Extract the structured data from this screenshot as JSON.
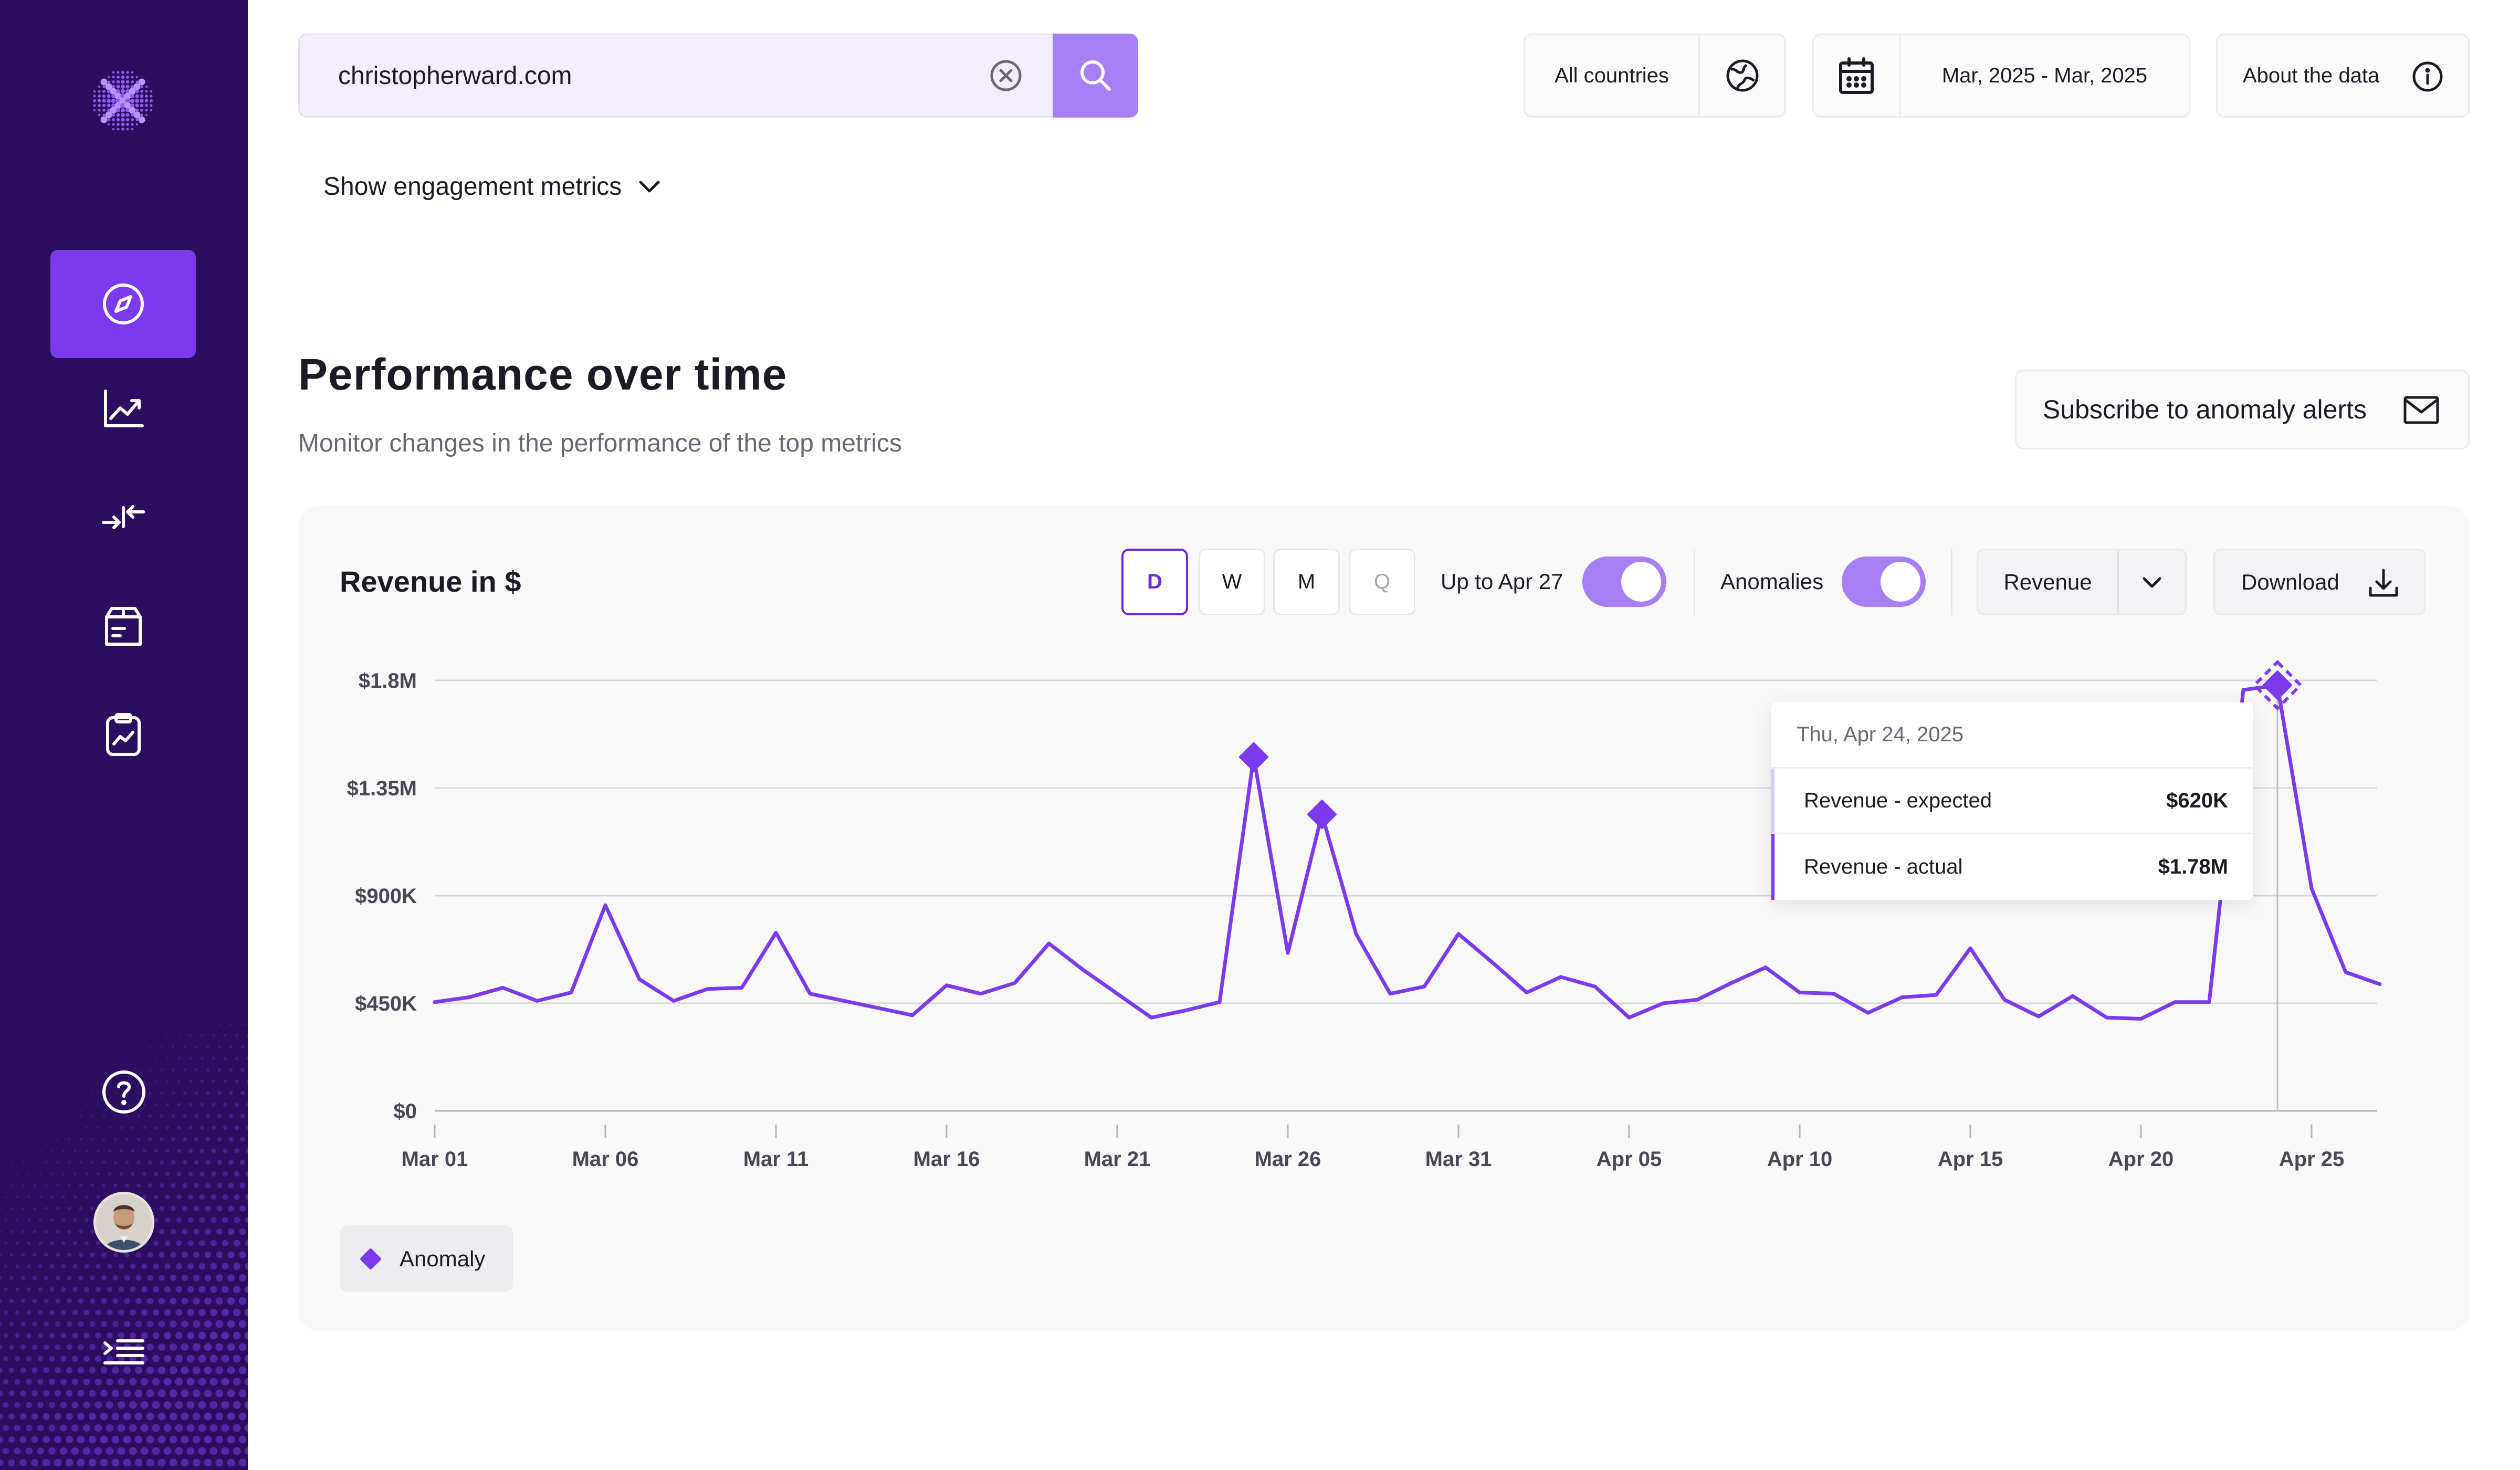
{
  "search": {
    "value": "christopherward.com"
  },
  "filters": {
    "country_label": "All countries",
    "date_range": "Mar, 2025 - Mar, 2025",
    "about_label": "About the data"
  },
  "engagement_toggle": "Show engagement metrics",
  "section": {
    "title": "Performance over time",
    "subtitle": "Monitor changes in the performance of the top metrics",
    "subscribe_label": "Subscribe to anomaly alerts"
  },
  "card": {
    "title": "Revenue in $",
    "granularity": [
      "D",
      "W",
      "M",
      "Q"
    ],
    "granularity_selected": "D",
    "up_to_label": "Up to Apr 27",
    "up_to_enabled": true,
    "anomalies_label": "Anomalies",
    "anomalies_enabled": true,
    "metric_select": "Revenue",
    "download_label": "Download",
    "legend_label": "Anomaly"
  },
  "tooltip": {
    "date": "Thu, Apr 24, 2025",
    "rows": [
      {
        "label": "Revenue - expected",
        "value": "$620K"
      },
      {
        "label": "Revenue - actual",
        "value": "$1.78M"
      }
    ]
  },
  "colors": {
    "sidebar": "#2b0e5f",
    "accent": "#7c3aed",
    "accent_light": "#a77ff5",
    "line": "#7c3aed"
  },
  "chart_data": {
    "type": "line",
    "title": "Revenue in $",
    "series": [
      {
        "name": "Revenue",
        "x": [
          "Mar 01",
          "Mar 02",
          "Mar 03",
          "Mar 04",
          "Mar 05",
          "Mar 06",
          "Mar 07",
          "Mar 08",
          "Mar 09",
          "Mar 10",
          "Mar 11",
          "Mar 12",
          "Mar 13",
          "Mar 14",
          "Mar 15",
          "Mar 16",
          "Mar 17",
          "Mar 18",
          "Mar 19",
          "Mar 20",
          "Mar 21",
          "Mar 22",
          "Mar 23",
          "Mar 24",
          "Mar 25",
          "Mar 26",
          "Mar 27",
          "Mar 28",
          "Mar 29",
          "Mar 30",
          "Mar 31",
          "Apr 01",
          "Apr 02",
          "Apr 03",
          "Apr 04",
          "Apr 05",
          "Apr 06",
          "Apr 07",
          "Apr 08",
          "Apr 09",
          "Apr 10",
          "Apr 11",
          "Apr 12",
          "Apr 13",
          "Apr 14",
          "Apr 15",
          "Apr 16",
          "Apr 17",
          "Apr 18",
          "Apr 19",
          "Apr 20",
          "Apr 21",
          "Apr 22",
          "Apr 23",
          "Apr 24",
          "Apr 25",
          "Apr 26",
          "Apr 27"
        ],
        "values": [
          455000,
          475000,
          515000,
          460000,
          495000,
          860000,
          550000,
          460000,
          510000,
          515000,
          745000,
          490000,
          460000,
          430000,
          400000,
          525000,
          490000,
          535000,
          700000,
          590000,
          490000,
          390000,
          420000,
          455000,
          1480000,
          660000,
          1240000,
          740000,
          490000,
          520000,
          740000,
          620000,
          495000,
          560000,
          520000,
          390000,
          450000,
          465000,
          535000,
          600000,
          495000,
          490000,
          410000,
          475000,
          485000,
          680000,
          465000,
          395000,
          480000,
          390000,
          385000,
          455000,
          455000,
          1760000,
          1780000,
          930000,
          580000,
          530000
        ]
      }
    ],
    "anomalies": [
      {
        "x": "Mar 25",
        "value": 1480000
      },
      {
        "x": "Mar 27",
        "value": 1240000
      },
      {
        "x": "Apr 24",
        "value": 1780000
      }
    ],
    "highlighted": "Apr 24",
    "y_ticks": [
      "$0",
      "$450K",
      "$900K",
      "$1.35M",
      "$1.8M"
    ],
    "y_tick_values": [
      0,
      450000,
      900000,
      1350000,
      1800000
    ],
    "x_ticks": [
      "Mar 01",
      "Mar 06",
      "Mar 11",
      "Mar 16",
      "Mar 21",
      "Mar 26",
      "Mar 31",
      "Apr 05",
      "Apr 10",
      "Apr 15",
      "Apr 20",
      "Apr 25"
    ],
    "ylim": [
      0,
      1800000
    ],
    "grid": true,
    "legend": "bottom-left"
  }
}
